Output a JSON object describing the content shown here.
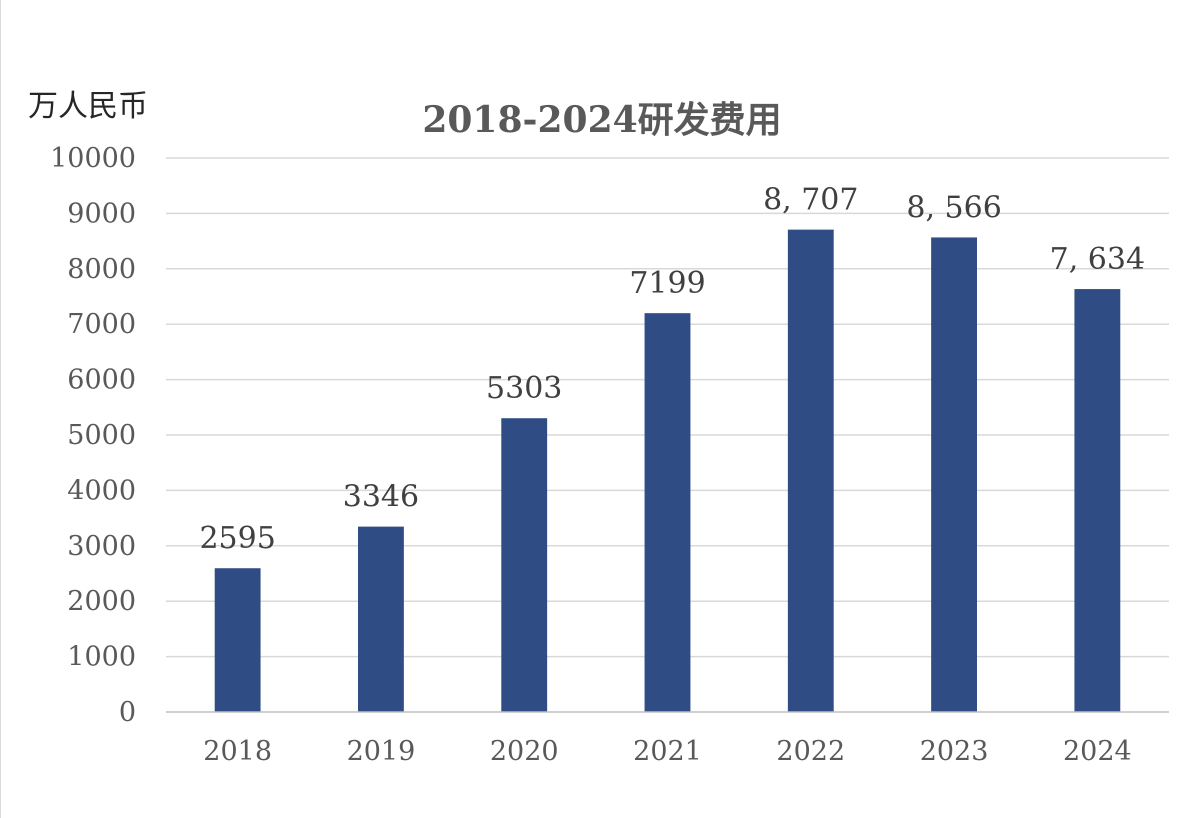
{
  "chart_data": {
    "type": "bar",
    "title": "2018-2024研发费用",
    "ylabel": "万人民币",
    "xlabel": "",
    "categories": [
      "2018",
      "2019",
      "2020",
      "2021",
      "2022",
      "2023",
      "2024"
    ],
    "values": [
      2595,
      3346,
      5303,
      7199,
      8707,
      8566,
      7634
    ],
    "data_labels": [
      "2595",
      "3346",
      "5303",
      "7199",
      "8, 707",
      "8, 566",
      "7, 634"
    ],
    "ylim": [
      0,
      10000
    ],
    "yticks": [
      "0",
      "1000",
      "2000",
      "3000",
      "4000",
      "5000",
      "6000",
      "7000",
      "8000",
      "9000",
      "10000"
    ],
    "grid": true,
    "legend": "none",
    "bar_color": "#304C84"
  }
}
